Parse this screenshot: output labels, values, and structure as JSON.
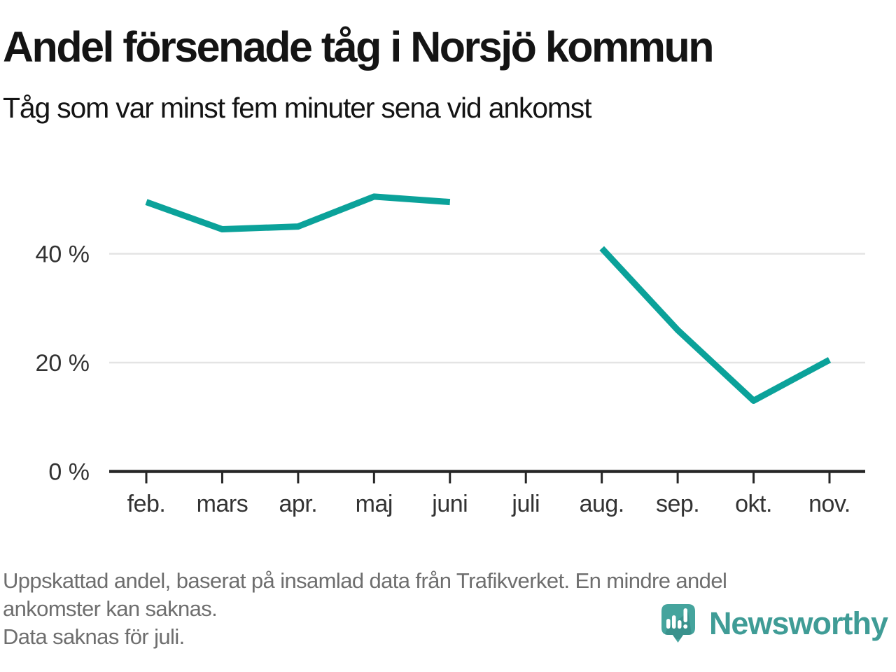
{
  "header": {
    "title": "Andel försenade tåg i Norsjö kommun",
    "subtitle": "Tåg som var minst fem minuter sena vid ankomst"
  },
  "chart_data": {
    "type": "line",
    "series_name": "Andel försenade tåg",
    "categories": [
      "feb.",
      "mars",
      "apr.",
      "maj",
      "juni",
      "juli",
      "aug.",
      "sep.",
      "okt.",
      "nov."
    ],
    "values": [
      49.5,
      44.5,
      45,
      50.5,
      49.5,
      null,
      41,
      26,
      13,
      20.5
    ],
    "unit": "%",
    "missing_categories": [
      "juli"
    ],
    "y_ticks": [
      0,
      20,
      40
    ],
    "y_tick_labels": [
      "0 %",
      "20 %",
      "40 %"
    ],
    "ylim": [
      0,
      55
    ],
    "grid": "horizontal-light",
    "legend": "none",
    "title": "Andel försenade tåg i Norsjö kommun",
    "subtitle": "Tåg som var minst fem minuter sena vid ankomst"
  },
  "footer": {
    "lines": [
      "Uppskattad andel, baserat på insamlad data från Trafikverket. En mindre andel",
      "ankomster kan saknas.",
      "Data saknas för juli."
    ]
  },
  "logo": {
    "brand": "Newsworthy",
    "icon": "newsworthy-speech-bubble-bars-icon"
  },
  "colors": {
    "line": "#0ba29a",
    "grid": "#e4e4e4",
    "axis": "#262626",
    "tick_label": "#333333",
    "title_text": "#141414",
    "footer_text": "#6e6e6e",
    "brand_teal": "#3f9c96",
    "logo_fill": "#45a49d",
    "logo_shadow": "#32837f"
  }
}
